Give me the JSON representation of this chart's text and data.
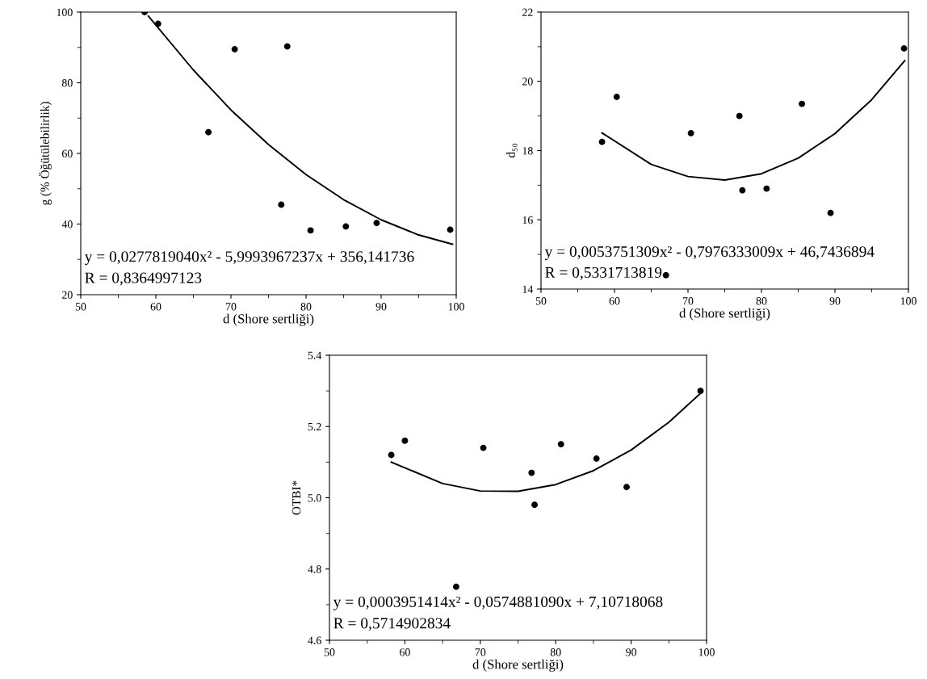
{
  "chart_data": [
    {
      "type": "scatter",
      "xlabel": "d (Shore sertliği)",
      "ylabel": "g (% Öğütülebilirlik)",
      "xlim": [
        50,
        100
      ],
      "xticks": [
        50,
        60,
        70,
        80,
        90,
        100
      ],
      "ylim": [
        20,
        100
      ],
      "yticks": [
        20,
        40,
        60,
        80,
        100
      ],
      "grid": false,
      "annotations": [
        "y = 0,0277819040x² - 5,9993967237x + 356,141736",
        "R = 0,8364997123"
      ],
      "series": [
        {
          "type": "scatter",
          "marker": "circle",
          "color": "#000000",
          "x": [
            58.5,
            60.3,
            67,
            70.5,
            76.7,
            77.5,
            80.6,
            85.3,
            89.4,
            99.2
          ],
          "values": [
            100,
            96.7,
            66,
            89.5,
            45.5,
            90.3,
            38.2,
            39.3,
            40.3,
            38.4
          ]
        },
        {
          "type": "line",
          "color": "#000000",
          "x": [
            59,
            65,
            70,
            75,
            80,
            85,
            90,
            95,
            99.5
          ],
          "values": [
            98.9,
            83.6,
            72.3,
            62.5,
            54.0,
            46.9,
            41.2,
            36.9,
            34.3
          ]
        }
      ]
    },
    {
      "type": "scatter",
      "xlabel": "d (Shore sertliği)",
      "ylabel": "d₅₀",
      "xlim": [
        50,
        100
      ],
      "xticks": [
        50,
        60,
        70,
        80,
        90,
        100
      ],
      "ylim": [
        14,
        22
      ],
      "yticks": [
        14,
        16,
        18,
        20,
        22
      ],
      "grid": false,
      "annotations": [
        "y = 0,0053751309x² - 0,7976333009x + 46,7436894",
        "R = 0,5331713819"
      ],
      "series": [
        {
          "type": "scatter",
          "marker": "circle",
          "color": "#000000",
          "x": [
            58.3,
            60.3,
            67,
            70.4,
            77,
            77.4,
            80.7,
            85.5,
            89.4,
            99.4
          ],
          "values": [
            18.25,
            19.55,
            14.4,
            18.5,
            19.0,
            16.85,
            16.9,
            19.35,
            16.2,
            20.95
          ]
        },
        {
          "type": "line",
          "color": "#000000",
          "x": [
            58.3,
            65,
            70,
            75,
            80,
            85,
            90,
            95,
            99.5
          ],
          "values": [
            18.51,
            17.6,
            17.25,
            17.15,
            17.33,
            17.78,
            18.49,
            19.47,
            20.6
          ]
        }
      ]
    },
    {
      "type": "scatter",
      "xlabel": "d (Shore sertliği)",
      "ylabel": "OTBI*",
      "xlim": [
        50,
        100
      ],
      "xticks": [
        50,
        60,
        70,
        80,
        90,
        100
      ],
      "ylim": [
        4.6,
        5.4
      ],
      "yticks": [
        {
          "value": 4.6,
          "label": "4.6"
        },
        {
          "value": 4.8,
          "label": "4.8"
        },
        {
          "value": 5.0,
          "label": "5.0"
        },
        {
          "value": 5.2,
          "label": "5.2"
        },
        {
          "value": 5.4,
          "label": "5.4"
        }
      ],
      "grid": false,
      "annotations": [
        "y = 0,0003951414x² - 0,0574881090x + 7,10718068",
        "R = 0,5714902834"
      ],
      "series": [
        {
          "type": "scatter",
          "marker": "circle",
          "color": "#000000",
          "x": [
            58.2,
            60,
            66.8,
            70.4,
            76.8,
            77.2,
            80.7,
            85.4,
            89.4,
            99.2
          ],
          "values": [
            5.12,
            5.16,
            4.75,
            5.14,
            5.07,
            4.98,
            5.15,
            5.11,
            5.03,
            5.3
          ]
        },
        {
          "type": "line",
          "color": "#000000",
          "x": [
            58.2,
            65,
            70,
            75,
            80,
            85,
            90,
            95,
            99.2
          ],
          "values": [
            5.1,
            5.04,
            5.019,
            5.018,
            5.037,
            5.076,
            5.134,
            5.212,
            5.293
          ]
        }
      ]
    }
  ]
}
